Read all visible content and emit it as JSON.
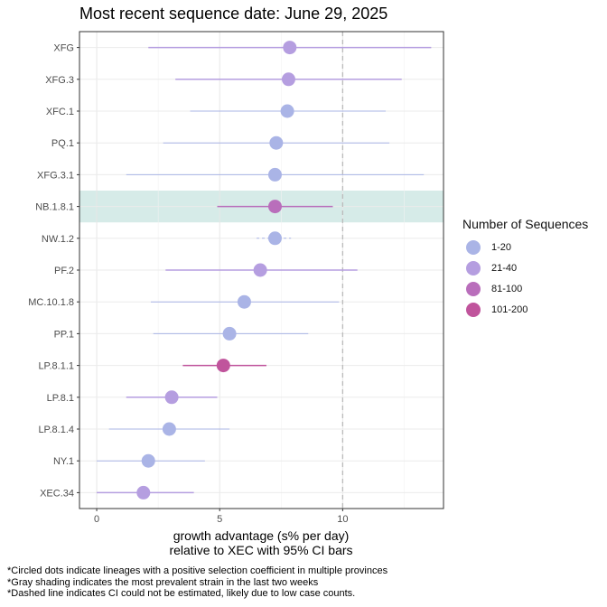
{
  "chart_data": {
    "type": "scatter",
    "title": "Most recent sequence date: June 29, 2025",
    "xlabel_line1": "growth advantage (s% per day)",
    "xlabel_line2": "relative to  XEC  with 95% CI bars",
    "xlim": [
      -0.7,
      14.1
    ],
    "xticks": [
      0,
      5,
      10
    ],
    "reference_line": {
      "x": 10,
      "style": "dashed"
    },
    "grid": true,
    "legend_position": "right",
    "legend": {
      "title": "Number of Sequences",
      "entries": [
        {
          "label": "1-20",
          "color": "#aab4e6"
        },
        {
          "label": "21-40",
          "color": "#b59ee0"
        },
        {
          "label": "81-100",
          "color": "#b96ebb"
        },
        {
          "label": "101-200",
          "color": "#c0549c"
        }
      ]
    },
    "series": [
      {
        "lineage": "XFG",
        "value": 7.85,
        "ci_low": 2.1,
        "ci_high": 13.6,
        "count_bin": "21-40",
        "ci_dashed": false,
        "shaded": false
      },
      {
        "lineage": "XFG.3",
        "value": 7.8,
        "ci_low": 3.2,
        "ci_high": 12.4,
        "count_bin": "21-40",
        "ci_dashed": false,
        "shaded": false
      },
      {
        "lineage": "XFC.1",
        "value": 7.75,
        "ci_low": 3.8,
        "ci_high": 11.75,
        "count_bin": "1-20",
        "ci_dashed": false,
        "shaded": false
      },
      {
        "lineage": "PQ.1",
        "value": 7.3,
        "ci_low": 2.7,
        "ci_high": 11.9,
        "count_bin": "1-20",
        "ci_dashed": false,
        "shaded": false
      },
      {
        "lineage": "XFG.3.1",
        "value": 7.25,
        "ci_low": 1.2,
        "ci_high": 13.3,
        "count_bin": "1-20",
        "ci_dashed": false,
        "shaded": false
      },
      {
        "lineage": "NB.1.8.1",
        "value": 7.25,
        "ci_low": 4.9,
        "ci_high": 9.6,
        "count_bin": "81-100",
        "ci_dashed": false,
        "shaded": true
      },
      {
        "lineage": "NW.1.2",
        "value": 7.25,
        "ci_low": 6.5,
        "ci_high": 7.9,
        "count_bin": "1-20",
        "ci_dashed": true,
        "shaded": false
      },
      {
        "lineage": "PF.2",
        "value": 6.65,
        "ci_low": 2.8,
        "ci_high": 10.6,
        "count_bin": "21-40",
        "ci_dashed": false,
        "shaded": false
      },
      {
        "lineage": "MC.10.1.8",
        "value": 6.0,
        "ci_low": 2.2,
        "ci_high": 9.85,
        "count_bin": "1-20",
        "ci_dashed": false,
        "shaded": false
      },
      {
        "lineage": "PP.1",
        "value": 5.4,
        "ci_low": 2.3,
        "ci_high": 8.6,
        "count_bin": "1-20",
        "ci_dashed": false,
        "shaded": false
      },
      {
        "lineage": "LP.8.1.1",
        "value": 5.15,
        "ci_low": 3.5,
        "ci_high": 6.9,
        "count_bin": "101-200",
        "ci_dashed": false,
        "shaded": false
      },
      {
        "lineage": "LP.8.1",
        "value": 3.05,
        "ci_low": 1.2,
        "ci_high": 4.9,
        "count_bin": "21-40",
        "ci_dashed": false,
        "shaded": false
      },
      {
        "lineage": "LP.8.1.4",
        "value": 2.95,
        "ci_low": 0.5,
        "ci_high": 5.4,
        "count_bin": "1-20",
        "ci_dashed": false,
        "shaded": false
      },
      {
        "lineage": "NY.1",
        "value": 2.1,
        "ci_low": 0.0,
        "ci_high": 4.4,
        "count_bin": "1-20",
        "ci_dashed": false,
        "shaded": false
      },
      {
        "lineage": "XEC.34",
        "value": 1.9,
        "ci_low": 0.0,
        "ci_high": 3.95,
        "count_bin": "21-40",
        "ci_dashed": false,
        "shaded": false
      }
    ],
    "shading_color": "#d6ebe8",
    "reference_line_color": "#bbbbbb"
  },
  "footnotes": [
    "*Circled dots indicate lineages with a positive selection coefficient in multiple provinces",
    "*Gray shading indicates the most prevalent strain in the last two weeks",
    "*Dashed line indicates CI could not be estimated, likely due to low case counts."
  ]
}
